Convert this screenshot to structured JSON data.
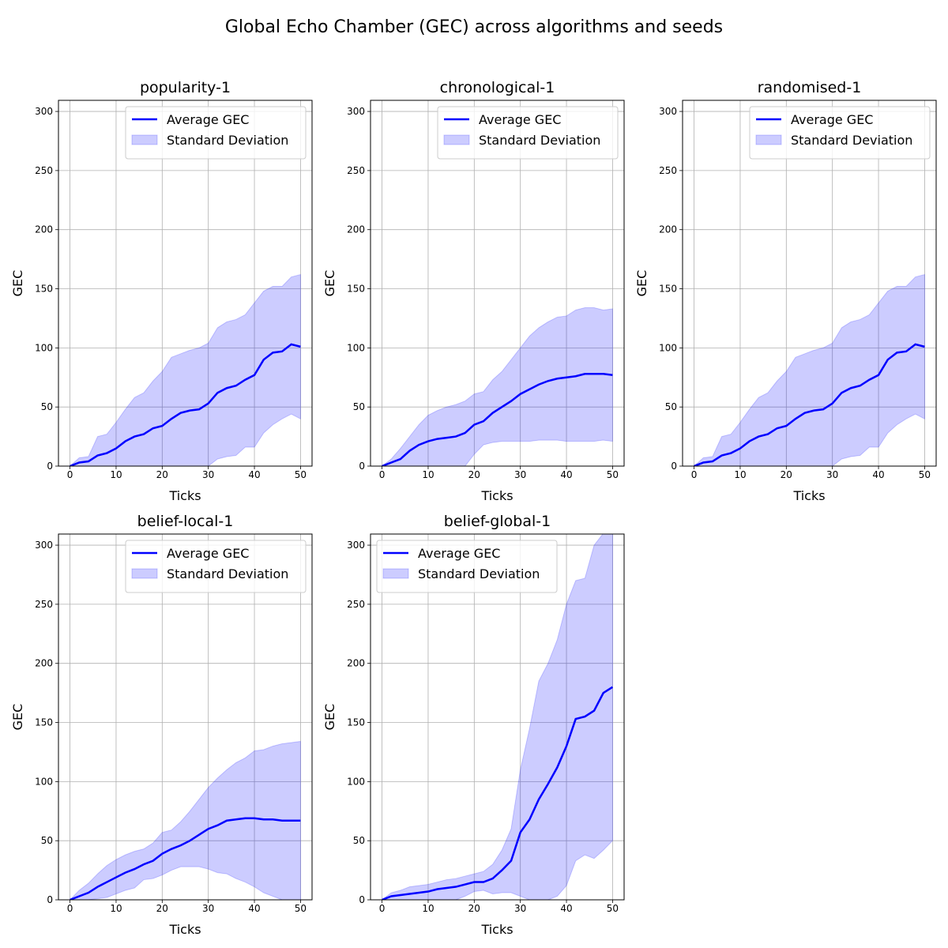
{
  "title": "Global Echo Chamber (GEC) across algorithms and seeds",
  "chart_data": [
    {
      "type": "line",
      "title": "popularity-1",
      "xlabel": "Ticks",
      "ylabel": "GEC",
      "x": [
        0,
        2,
        4,
        6,
        8,
        10,
        12,
        14,
        16,
        18,
        20,
        22,
        24,
        26,
        28,
        30,
        32,
        34,
        36,
        38,
        40,
        42,
        44,
        46,
        48,
        50
      ],
      "series": [
        {
          "name": "Average GEC",
          "color": "#0000ff",
          "values": [
            0,
            3,
            4,
            9,
            11,
            15,
            21,
            25,
            27,
            32,
            34,
            40,
            45,
            47,
            48,
            53,
            62,
            66,
            68,
            73,
            77,
            90,
            96,
            97,
            103,
            101
          ]
        }
      ],
      "band": {
        "name": "Standard Deviation",
        "color": "#0000ff",
        "upper": [
          0,
          7,
          8,
          25,
          27,
          37,
          48,
          58,
          62,
          72,
          80,
          92,
          95,
          98,
          100,
          104,
          117,
          122,
          124,
          128,
          138,
          148,
          152,
          152,
          160,
          162
        ],
        "lower": [
          0,
          0,
          0,
          0,
          0,
          0,
          0,
          0,
          0,
          0,
          0,
          0,
          0,
          0,
          0,
          0,
          6,
          8,
          9,
          16,
          16,
          28,
          35,
          40,
          44,
          40
        ]
      },
      "xlim": [
        -2.5,
        52.5
      ],
      "ylim": [
        0,
        309.4
      ],
      "xticks": [
        0,
        10,
        20,
        30,
        40,
        50
      ],
      "yticks": [
        0,
        50,
        100,
        150,
        200,
        250,
        300
      ],
      "grid": true,
      "legend": "upper right"
    },
    {
      "type": "line",
      "title": "chronological-1",
      "xlabel": "Ticks",
      "ylabel": "GEC",
      "x": [
        0,
        2,
        4,
        6,
        8,
        10,
        12,
        14,
        16,
        18,
        20,
        22,
        24,
        26,
        28,
        30,
        32,
        34,
        36,
        38,
        40,
        42,
        44,
        46,
        48,
        50
      ],
      "series": [
        {
          "name": "Average GEC",
          "color": "#0000ff",
          "values": [
            0,
            3,
            6,
            13,
            18,
            21,
            23,
            24,
            25,
            28,
            35,
            38,
            45,
            50,
            55,
            61,
            65,
            69,
            72,
            74,
            75,
            76,
            78,
            78,
            78,
            77
          ]
        }
      ],
      "band": {
        "name": "Standard Deviation",
        "color": "#0000ff",
        "upper": [
          0,
          6,
          15,
          25,
          35,
          43,
          47,
          50,
          52,
          55,
          61,
          63,
          73,
          80,
          90,
          100,
          110,
          117,
          122,
          126,
          127,
          132,
          134,
          134,
          132,
          133
        ],
        "lower": [
          0,
          0,
          0,
          0,
          0,
          0,
          0,
          0,
          0,
          0,
          10,
          18,
          20,
          21,
          21,
          21,
          21,
          22,
          22,
          22,
          21,
          21,
          21,
          21,
          22,
          21
        ]
      },
      "xlim": [
        -2.5,
        52.5
      ],
      "ylim": [
        0,
        309.4
      ],
      "xticks": [
        0,
        10,
        20,
        30,
        40,
        50
      ],
      "yticks": [
        0,
        50,
        100,
        150,
        200,
        250,
        300
      ],
      "grid": true,
      "legend": "upper right"
    },
    {
      "type": "line",
      "title": "randomised-1",
      "xlabel": "Ticks",
      "ylabel": "GEC",
      "x": [
        0,
        2,
        4,
        6,
        8,
        10,
        12,
        14,
        16,
        18,
        20,
        22,
        24,
        26,
        28,
        30,
        32,
        34,
        36,
        38,
        40,
        42,
        44,
        46,
        48,
        50
      ],
      "series": [
        {
          "name": "Average GEC",
          "color": "#0000ff",
          "values": [
            0,
            3,
            4,
            9,
            11,
            15,
            21,
            25,
            27,
            32,
            34,
            40,
            45,
            47,
            48,
            53,
            62,
            66,
            68,
            73,
            77,
            90,
            96,
            97,
            103,
            101
          ]
        }
      ],
      "band": {
        "name": "Standard Deviation",
        "color": "#0000ff",
        "upper": [
          0,
          7,
          8,
          25,
          27,
          37,
          48,
          58,
          62,
          72,
          80,
          92,
          95,
          98,
          100,
          104,
          117,
          122,
          124,
          128,
          138,
          148,
          152,
          152,
          160,
          162
        ],
        "lower": [
          0,
          0,
          0,
          0,
          0,
          0,
          0,
          0,
          0,
          0,
          0,
          0,
          0,
          0,
          0,
          0,
          6,
          8,
          9,
          16,
          16,
          28,
          35,
          40,
          44,
          40
        ]
      },
      "xlim": [
        -2.5,
        52.5
      ],
      "ylim": [
        0,
        309.4
      ],
      "xticks": [
        0,
        10,
        20,
        30,
        40,
        50
      ],
      "yticks": [
        0,
        50,
        100,
        150,
        200,
        250,
        300
      ],
      "grid": true,
      "legend": "upper right"
    },
    {
      "type": "line",
      "title": "belief-local-1",
      "xlabel": "Ticks",
      "ylabel": "GEC",
      "x": [
        0,
        2,
        4,
        6,
        8,
        10,
        12,
        14,
        16,
        18,
        20,
        22,
        24,
        26,
        28,
        30,
        32,
        34,
        36,
        38,
        40,
        42,
        44,
        46,
        48,
        50
      ],
      "series": [
        {
          "name": "Average GEC",
          "color": "#0000ff",
          "values": [
            0,
            3,
            6,
            11,
            15,
            19,
            23,
            26,
            30,
            33,
            39,
            43,
            46,
            50,
            55,
            60,
            63,
            67,
            68,
            69,
            69,
            68,
            68,
            67,
            67,
            67
          ]
        }
      ],
      "band": {
        "name": "Standard Deviation",
        "color": "#0000ff",
        "upper": [
          0,
          8,
          14,
          22,
          29,
          34,
          38,
          41,
          43,
          48,
          57,
          59,
          66,
          75,
          85,
          95,
          103,
          110,
          116,
          120,
          126,
          127,
          130,
          132,
          133,
          134
        ],
        "lower": [
          0,
          0,
          0,
          1,
          2,
          5,
          8,
          10,
          17,
          18,
          21,
          25,
          28,
          28,
          28,
          26,
          23,
          22,
          18,
          15,
          11,
          6,
          3,
          0,
          0,
          0
        ]
      },
      "xlim": [
        -2.5,
        52.5
      ],
      "ylim": [
        0,
        309.4
      ],
      "xticks": [
        0,
        10,
        20,
        30,
        40,
        50
      ],
      "yticks": [
        0,
        50,
        100,
        150,
        200,
        250,
        300
      ],
      "grid": true,
      "legend": "upper right"
    },
    {
      "type": "line",
      "title": "belief-global-1",
      "xlabel": "Ticks",
      "ylabel": "GEC",
      "x": [
        0,
        2,
        4,
        6,
        8,
        10,
        12,
        14,
        16,
        18,
        20,
        22,
        24,
        26,
        28,
        30,
        32,
        34,
        36,
        38,
        40,
        42,
        44,
        46,
        48,
        50
      ],
      "series": [
        {
          "name": "Average GEC",
          "color": "#0000ff",
          "values": [
            0,
            3,
            4,
            5,
            6,
            7,
            9,
            10,
            11,
            13,
            15,
            15,
            18,
            25,
            33,
            57,
            68,
            85,
            98,
            112,
            130,
            153,
            155,
            160,
            175,
            180
          ]
        }
      ],
      "band": {
        "name": "Standard Deviation",
        "color": "#0000ff",
        "upper": [
          0,
          6,
          8,
          11,
          12,
          13,
          15,
          17,
          18,
          20,
          22,
          24,
          30,
          42,
          60,
          110,
          145,
          185,
          200,
          220,
          250,
          270,
          272,
          300,
          310,
          310
        ],
        "lower": [
          0,
          0,
          0,
          0,
          0,
          0,
          0,
          0,
          0,
          3,
          7,
          8,
          5,
          6,
          6,
          3,
          0,
          0,
          0,
          3,
          12,
          33,
          38,
          35,
          42,
          50
        ]
      },
      "xlim": [
        -2.5,
        52.5
      ],
      "ylim": [
        0,
        309.4
      ],
      "xticks": [
        0,
        10,
        20,
        30,
        40,
        50
      ],
      "yticks": [
        0,
        50,
        100,
        150,
        200,
        250,
        300
      ],
      "grid": true,
      "legend": "upper left"
    }
  ]
}
